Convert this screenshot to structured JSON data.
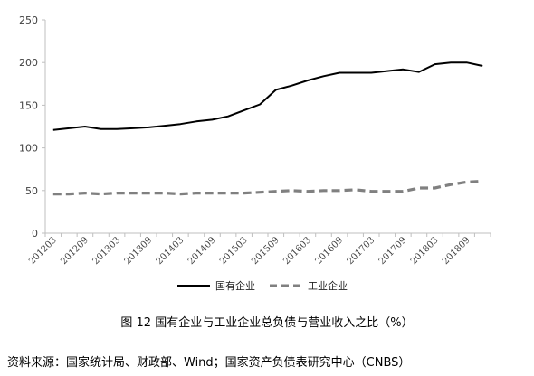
{
  "chart_data": {
    "type": "line",
    "title": "",
    "xlabel": "",
    "ylabel": "",
    "ylim": [
      0,
      250
    ],
    "yticks": [
      0,
      50,
      100,
      150,
      200,
      250
    ],
    "grid": false,
    "legend_position": "bottom",
    "x": [
      "201203",
      "201206",
      "201209",
      "201212",
      "201303",
      "201306",
      "201309",
      "201312",
      "201403",
      "201406",
      "201409",
      "201412",
      "201503",
      "201506",
      "201509",
      "201512",
      "201603",
      "201606",
      "201609",
      "201612",
      "201703",
      "201706",
      "201709",
      "201712",
      "201803",
      "201806",
      "201809",
      "201812"
    ],
    "xtick_labels": [
      "201203",
      "201209",
      "201303",
      "201309",
      "201403",
      "201409",
      "201503",
      "201509",
      "201603",
      "201609",
      "201703",
      "201709",
      "201803",
      "201809"
    ],
    "series": [
      {
        "name": "国有企业",
        "style": "solid",
        "color": "#000000",
        "values": [
          121,
          123,
          125,
          122,
          122,
          123,
          124,
          126,
          128,
          131,
          133,
          137,
          144,
          151,
          168,
          173,
          179,
          184,
          188,
          188,
          188,
          190,
          192,
          189,
          198,
          200,
          200,
          196
        ]
      },
      {
        "name": "工业企业",
        "style": "dashed",
        "color": "#808080",
        "values": [
          46,
          46,
          47,
          46,
          47,
          47,
          47,
          47,
          46,
          47,
          47,
          47,
          47,
          48,
          49,
          50,
          49,
          50,
          50,
          51,
          49,
          49,
          49,
          53,
          53,
          57,
          60,
          61
        ]
      }
    ]
  },
  "caption": "图 12  国有企业与工业企业总负债与营业收入之比（%）",
  "source": "资料来源：国家统计局、财政部、Wind；国家资产负债表研究中心（CNBS）"
}
